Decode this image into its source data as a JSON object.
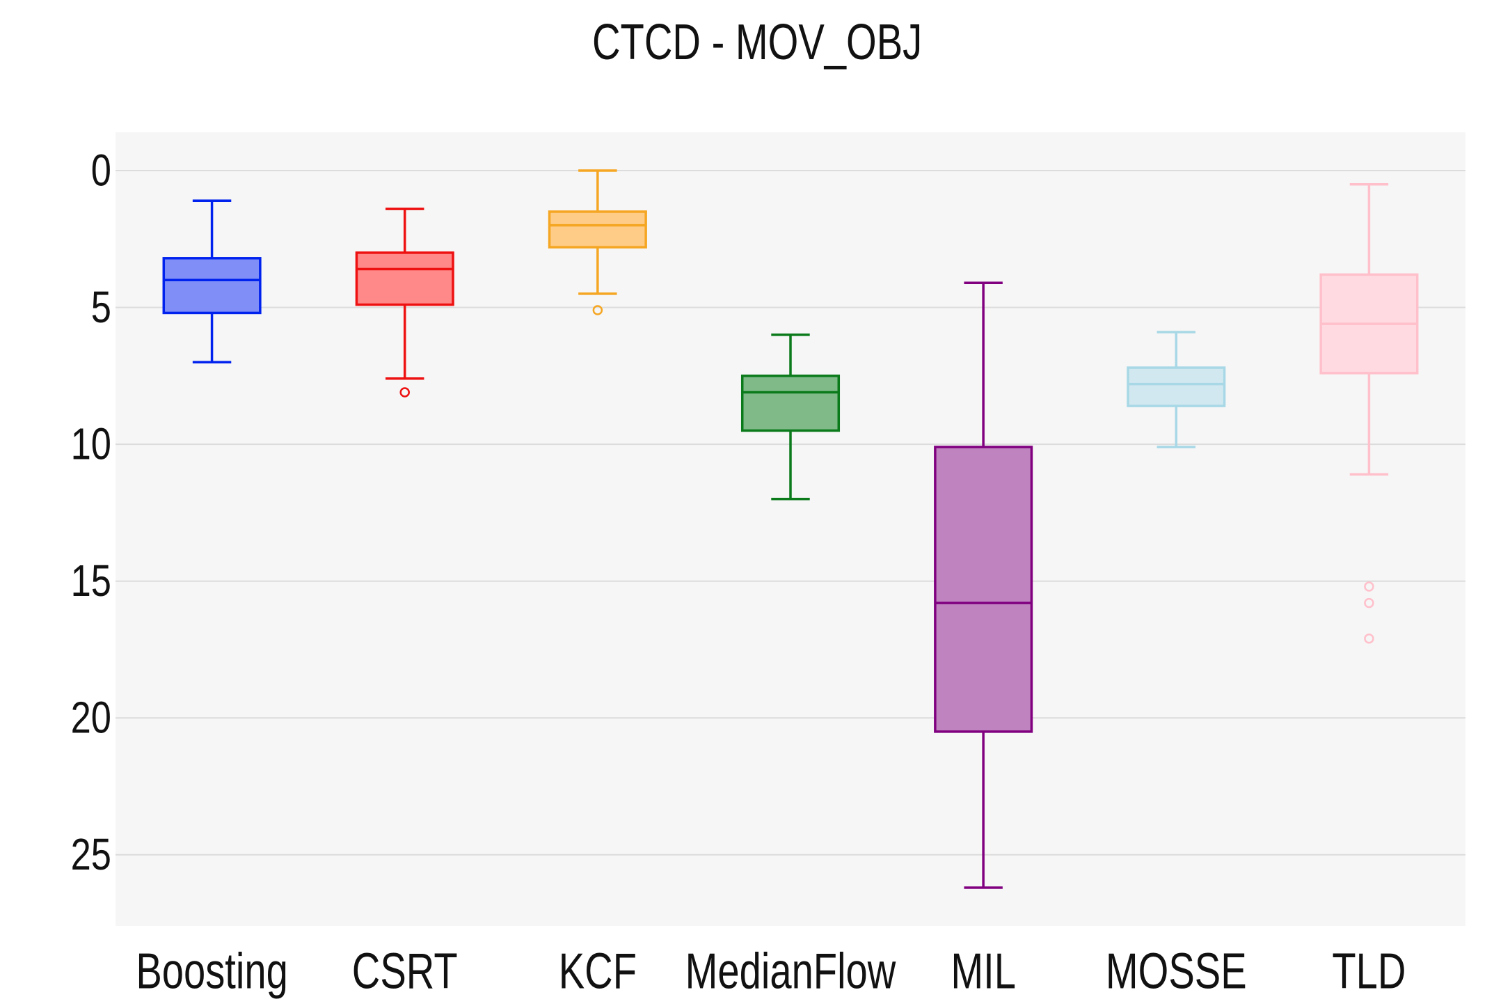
{
  "chart_data": {
    "type": "box",
    "title": "CTCD - MOV_OBJ",
    "xlabel": "",
    "ylabel": "",
    "y_axis_reversed": true,
    "ylim": [
      -1.4,
      27.6
    ],
    "yticks": [
      0,
      5,
      10,
      15,
      20,
      25
    ],
    "grid": true,
    "categories": [
      "Boosting",
      "CSRT",
      "KCF",
      "MedianFlow",
      "MIL",
      "MOSSE",
      "TLD"
    ],
    "series": [
      {
        "name": "Boosting",
        "color": "#0022ee",
        "fill": "#7f8ff7",
        "whisker_low": 1.1,
        "q1": 3.2,
        "median": 4.0,
        "q3": 5.2,
        "whisker_high": 7.0,
        "outliers": []
      },
      {
        "name": "CSRT",
        "color": "#ee1111",
        "fill": "#ff8888",
        "whisker_low": 1.4,
        "q1": 3.0,
        "median": 3.6,
        "q3": 4.9,
        "whisker_high": 7.6,
        "outliers": [
          8.1
        ]
      },
      {
        "name": "KCF",
        "color": "#f5a623",
        "fill": "#ffcc88",
        "whisker_low": 0.0,
        "q1": 1.5,
        "median": 2.0,
        "q3": 2.8,
        "whisker_high": 4.5,
        "outliers": [
          5.1
        ]
      },
      {
        "name": "MedianFlow",
        "color": "#0a7a1a",
        "fill": "#7fba88",
        "whisker_low": 6.0,
        "q1": 7.5,
        "median": 8.1,
        "q3": 9.5,
        "whisker_high": 12.0,
        "outliers": []
      },
      {
        "name": "MIL",
        "color": "#800080",
        "fill": "#bf84bf",
        "whisker_low": 4.1,
        "q1": 10.1,
        "median": 15.8,
        "q3": 20.5,
        "whisker_high": 26.2,
        "outliers": []
      },
      {
        "name": "MOSSE",
        "color": "#a8d8e6",
        "fill": "#d2e8f0",
        "whisker_low": 5.9,
        "q1": 7.2,
        "median": 7.8,
        "q3": 8.6,
        "whisker_high": 10.1,
        "outliers": []
      },
      {
        "name": "TLD",
        "color": "#ffc0cb",
        "fill": "#ffdbe1",
        "whisker_low": 0.5,
        "q1": 3.8,
        "median": 5.6,
        "q3": 7.4,
        "whisker_high": 11.1,
        "outliers": [
          15.2,
          15.8,
          17.1
        ]
      }
    ]
  }
}
